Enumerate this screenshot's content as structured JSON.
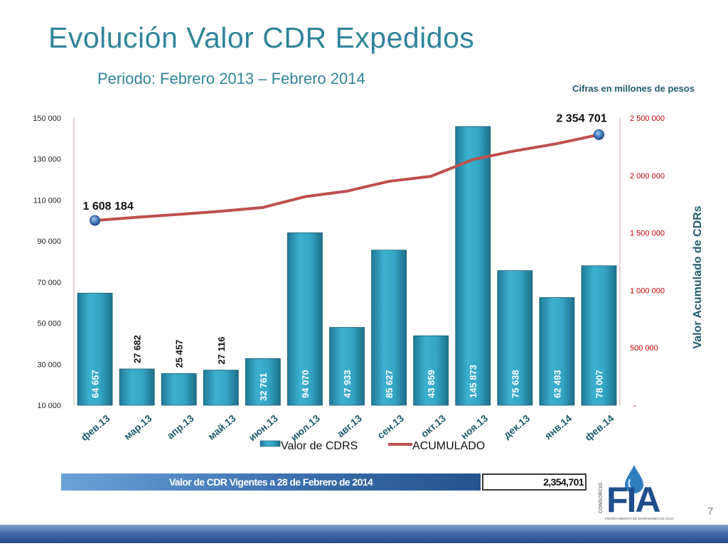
{
  "slide": {
    "title": "Evolución Valor CDR Expedidos",
    "subtitle": "Periodo: Febrero 2013 – Febrero 2014",
    "units_note": "Cifras en millones de pesos",
    "page_number": "7"
  },
  "summary": {
    "label": "Valor de CDR Vigentes a 28 de Febrero de 2014",
    "value": "2,354,701"
  },
  "logo": {
    "side_text": "CONSORCIO",
    "letters": "FIA",
    "tagline": "FINANCIAMIENTO DE INVERSIONES EN AGUA"
  },
  "colors": {
    "accent": "#31849b",
    "bar": "#31a5c4",
    "line": "#c0504d",
    "marker": "#4a7fc0",
    "right_axis": "#c00000",
    "footer": "#3b5d9e"
  },
  "chart_data": {
    "type": "bar",
    "categories": [
      "фев.13",
      "мар.13",
      "апр.13",
      "май.13",
      "июн.13",
      "июл.13",
      "авг.13",
      "сен.13",
      "окт.13",
      "ноя.13",
      "дек.13",
      "янв.14",
      "фев.14"
    ],
    "series": [
      {
        "name": "Valor de CDRS",
        "type": "bar",
        "axis": "left",
        "values": [
          64657,
          27682,
          25457,
          27116,
          32761,
          94070,
          47933,
          85627,
          43859,
          145873,
          75638,
          62493,
          78007
        ],
        "labels": [
          "64 657",
          "27 682",
          "25 457",
          "27 116",
          "32 761",
          "94 070",
          "47 933",
          "85 627",
          "43 859",
          "145 873",
          "75 638",
          "62 493",
          "78 007"
        ]
      },
      {
        "name": "ACUMULADO",
        "type": "line",
        "axis": "right",
        "values": [
          1608184,
          1635866,
          1661323,
          1688439,
          1721200,
          1815270,
          1863203,
          1948830,
          1992689,
          2138562,
          2214200,
          2276694,
          2354701
        ],
        "endpoint_labels": [
          "1 608 184",
          "2 354 701"
        ]
      }
    ],
    "y_left": {
      "min": 10000,
      "max": 150000,
      "ticks": [
        150000,
        130000,
        110000,
        90000,
        70000,
        50000,
        30000,
        10000
      ],
      "tick_labels": [
        "150 000",
        "130 000",
        "110 000",
        "90 000",
        "70 000",
        "50 000",
        "30 000",
        "10 000"
      ]
    },
    "y_right": {
      "min": 0,
      "max": 2500000,
      "ticks": [
        2500000,
        2000000,
        1500000,
        1000000,
        500000,
        0
      ],
      "tick_labels": [
        "2 500 000",
        "2 000 000",
        "1 500 000",
        "1 000 000",
        "500 000",
        "-"
      ],
      "label": "Valor Acumulado de CDRs"
    },
    "legend": [
      "Valor de CDRS",
      "ACUMULADO"
    ],
    "legend_position": "bottom"
  }
}
